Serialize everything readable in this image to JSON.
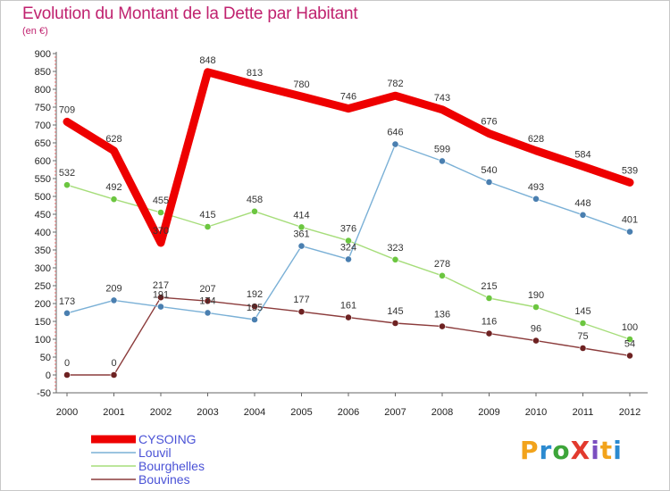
{
  "title": "Evolution du Montant de la Dette par Habitant",
  "subtitle": "(en €)",
  "logo": {
    "text": "ProXiti",
    "colors": [
      "#f2a31b",
      "#2b8ad0",
      "#3da53a",
      "#e23a2e",
      "#7b4fc0",
      "#f2a31b",
      "#2b8ad0"
    ]
  },
  "chart_data": {
    "type": "line",
    "x": [
      "2000",
      "2001",
      "2002",
      "2003",
      "2004",
      "2005",
      "2006",
      "2007",
      "2008",
      "2009",
      "2010",
      "2011",
      "2012"
    ],
    "ylim": [
      -50,
      900
    ],
    "yticks": [
      -50,
      0,
      50,
      100,
      150,
      200,
      250,
      300,
      350,
      400,
      450,
      500,
      550,
      600,
      650,
      700,
      750,
      800,
      850,
      900
    ],
    "grid": false,
    "legend_position": "bottom-left",
    "series": [
      {
        "name": "CYSOING",
        "color": "#ee0000",
        "width": 9,
        "marker": 0,
        "values": [
          709,
          628,
          370,
          848,
          813,
          780,
          746,
          782,
          743,
          676,
          628,
          584,
          539
        ]
      },
      {
        "name": "Louvil",
        "color": "#7ab0d6",
        "width": 1.4,
        "marker": 3.6,
        "markerColor": "#4a7fb0",
        "values": [
          173,
          209,
          191,
          174,
          155,
          361,
          324,
          646,
          599,
          540,
          493,
          448,
          401
        ]
      },
      {
        "name": "Bourghelles",
        "color": "#a6dd7a",
        "width": 1.4,
        "marker": 3.6,
        "markerColor": "#6cc640",
        "values": [
          532,
          492,
          455,
          415,
          458,
          414,
          376,
          323,
          278,
          215,
          190,
          145,
          100
        ]
      },
      {
        "name": "Bouvines",
        "color": "#8b3b3b",
        "width": 1.4,
        "marker": 3.6,
        "markerColor": "#6e2222",
        "values": [
          0,
          0,
          217,
          207,
          192,
          177,
          161,
          145,
          136,
          116,
          96,
          75,
          54
        ]
      }
    ]
  }
}
